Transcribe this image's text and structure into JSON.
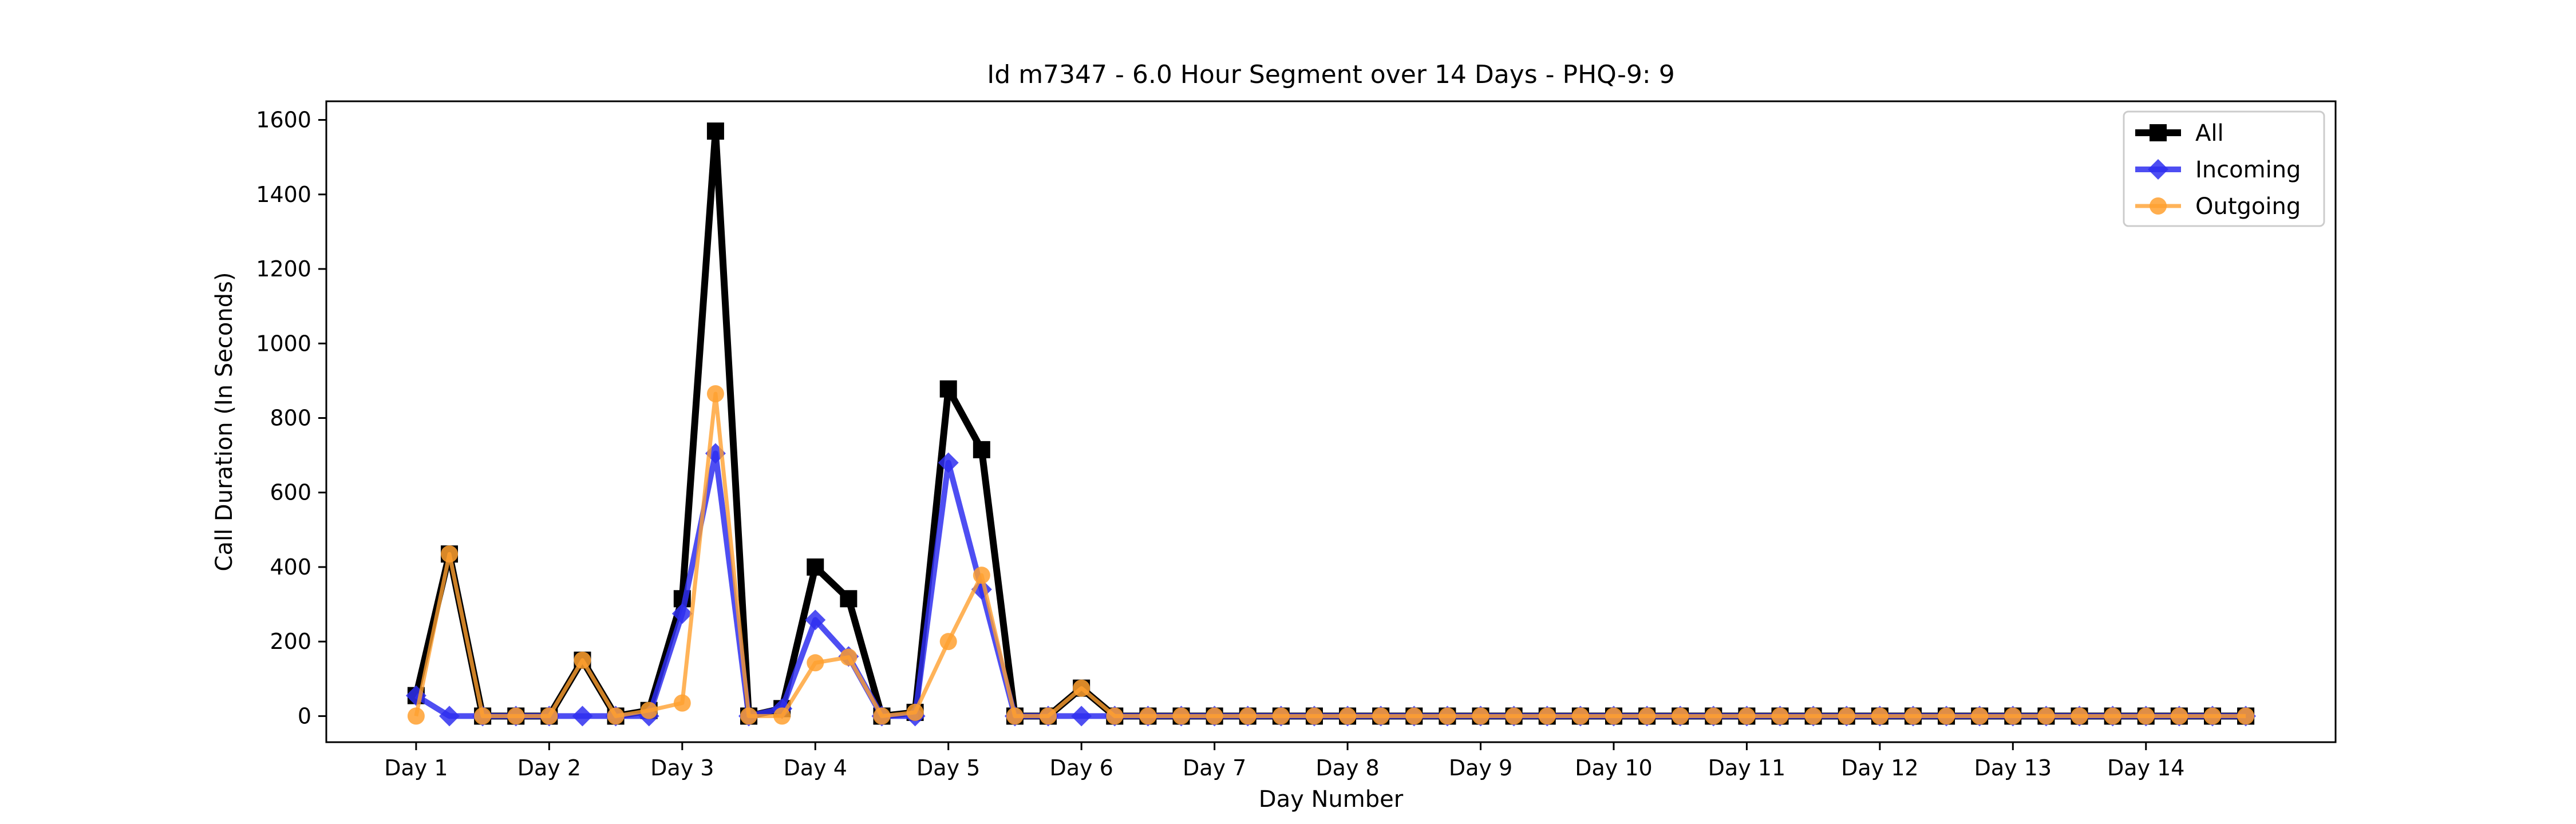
{
  "chart_data": {
    "type": "line",
    "title": "Id m7347 - 6.0 Hour Segment over 14 Days - PHQ-9: 9",
    "xlabel": "Day Number",
    "ylabel": "Call Duration (In Seconds)",
    "ylim": [
      -70,
      1650
    ],
    "xlim": [
      -2.7,
      57.7
    ],
    "x_ticks": [
      {
        "pos": 0,
        "label": "Day 1"
      },
      {
        "pos": 4,
        "label": "Day 2"
      },
      {
        "pos": 8,
        "label": "Day 3"
      },
      {
        "pos": 12,
        "label": "Day 4"
      },
      {
        "pos": 16,
        "label": "Day 5"
      },
      {
        "pos": 20,
        "label": "Day 6"
      },
      {
        "pos": 24,
        "label": "Day 7"
      },
      {
        "pos": 28,
        "label": "Day 8"
      },
      {
        "pos": 32,
        "label": "Day 9"
      },
      {
        "pos": 36,
        "label": "Day 10"
      },
      {
        "pos": 40,
        "label": "Day 11"
      },
      {
        "pos": 44,
        "label": "Day 12"
      },
      {
        "pos": 48,
        "label": "Day 13"
      },
      {
        "pos": 52,
        "label": "Day 14"
      }
    ],
    "y_ticks": [
      0,
      200,
      400,
      600,
      800,
      1000,
      1200,
      1400,
      1600
    ],
    "legend_position": "top-right",
    "grid": false,
    "series": [
      {
        "name": "All",
        "color": "#000000",
        "marker": "square",
        "values": [
          55,
          435,
          0,
          0,
          0,
          150,
          0,
          15,
          315,
          1570,
          0,
          20,
          400,
          315,
          0,
          10,
          878,
          715,
          0,
          0,
          75,
          0,
          0,
          0,
          0,
          0,
          0,
          0,
          0,
          0,
          0,
          0,
          0,
          0,
          0,
          0,
          0,
          0,
          0,
          0,
          0,
          0,
          0,
          0,
          0,
          0,
          0,
          0,
          0,
          0,
          0,
          0,
          0,
          0,
          0,
          0
        ]
      },
      {
        "name": "Incoming",
        "color": "#2f2ff0",
        "marker": "diamond",
        "values": [
          55,
          0,
          0,
          0,
          0,
          0,
          0,
          0,
          275,
          705,
          0,
          20,
          258,
          160,
          0,
          0,
          680,
          340,
          0,
          0,
          0,
          0,
          0,
          0,
          0,
          0,
          0,
          0,
          0,
          0,
          0,
          0,
          0,
          0,
          0,
          0,
          0,
          0,
          0,
          0,
          0,
          0,
          0,
          0,
          0,
          0,
          0,
          0,
          0,
          0,
          0,
          0,
          0,
          0,
          0,
          0
        ]
      },
      {
        "name": "Outgoing",
        "color": "#ffa02f",
        "marker": "circle",
        "values": [
          0,
          435,
          0,
          0,
          0,
          150,
          0,
          15,
          35,
          865,
          0,
          0,
          143,
          158,
          0,
          10,
          200,
          378,
          0,
          0,
          75,
          0,
          0,
          0,
          0,
          0,
          0,
          0,
          0,
          0,
          0,
          0,
          0,
          0,
          0,
          0,
          0,
          0,
          0,
          0,
          0,
          0,
          0,
          0,
          0,
          0,
          0,
          0,
          0,
          0,
          0,
          0,
          0,
          0,
          0,
          0
        ]
      }
    ]
  }
}
